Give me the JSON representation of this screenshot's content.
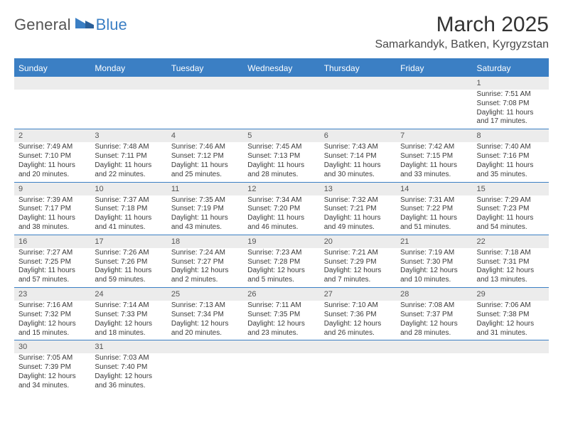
{
  "brand": {
    "general": "General",
    "blue": "Blue"
  },
  "title": "March 2025",
  "location": "Samarkandyk, Batken, Kyrgyzstan",
  "accent_color": "#3b7fc4",
  "header_bg": "#ececec",
  "text_color": "#333333",
  "day_headers": [
    "Sunday",
    "Monday",
    "Tuesday",
    "Wednesday",
    "Thursday",
    "Friday",
    "Saturday"
  ],
  "weeks": [
    [
      null,
      null,
      null,
      null,
      null,
      null,
      {
        "n": "1",
        "sr": "Sunrise: 7:51 AM",
        "ss": "Sunset: 7:08 PM",
        "dl": "Daylight: 11 hours and 17 minutes."
      }
    ],
    [
      {
        "n": "2",
        "sr": "Sunrise: 7:49 AM",
        "ss": "Sunset: 7:10 PM",
        "dl": "Daylight: 11 hours and 20 minutes."
      },
      {
        "n": "3",
        "sr": "Sunrise: 7:48 AM",
        "ss": "Sunset: 7:11 PM",
        "dl": "Daylight: 11 hours and 22 minutes."
      },
      {
        "n": "4",
        "sr": "Sunrise: 7:46 AM",
        "ss": "Sunset: 7:12 PM",
        "dl": "Daylight: 11 hours and 25 minutes."
      },
      {
        "n": "5",
        "sr": "Sunrise: 7:45 AM",
        "ss": "Sunset: 7:13 PM",
        "dl": "Daylight: 11 hours and 28 minutes."
      },
      {
        "n": "6",
        "sr": "Sunrise: 7:43 AM",
        "ss": "Sunset: 7:14 PM",
        "dl": "Daylight: 11 hours and 30 minutes."
      },
      {
        "n": "7",
        "sr": "Sunrise: 7:42 AM",
        "ss": "Sunset: 7:15 PM",
        "dl": "Daylight: 11 hours and 33 minutes."
      },
      {
        "n": "8",
        "sr": "Sunrise: 7:40 AM",
        "ss": "Sunset: 7:16 PM",
        "dl": "Daylight: 11 hours and 35 minutes."
      }
    ],
    [
      {
        "n": "9",
        "sr": "Sunrise: 7:39 AM",
        "ss": "Sunset: 7:17 PM",
        "dl": "Daylight: 11 hours and 38 minutes."
      },
      {
        "n": "10",
        "sr": "Sunrise: 7:37 AM",
        "ss": "Sunset: 7:18 PM",
        "dl": "Daylight: 11 hours and 41 minutes."
      },
      {
        "n": "11",
        "sr": "Sunrise: 7:35 AM",
        "ss": "Sunset: 7:19 PM",
        "dl": "Daylight: 11 hours and 43 minutes."
      },
      {
        "n": "12",
        "sr": "Sunrise: 7:34 AM",
        "ss": "Sunset: 7:20 PM",
        "dl": "Daylight: 11 hours and 46 minutes."
      },
      {
        "n": "13",
        "sr": "Sunrise: 7:32 AM",
        "ss": "Sunset: 7:21 PM",
        "dl": "Daylight: 11 hours and 49 minutes."
      },
      {
        "n": "14",
        "sr": "Sunrise: 7:31 AM",
        "ss": "Sunset: 7:22 PM",
        "dl": "Daylight: 11 hours and 51 minutes."
      },
      {
        "n": "15",
        "sr": "Sunrise: 7:29 AM",
        "ss": "Sunset: 7:23 PM",
        "dl": "Daylight: 11 hours and 54 minutes."
      }
    ],
    [
      {
        "n": "16",
        "sr": "Sunrise: 7:27 AM",
        "ss": "Sunset: 7:25 PM",
        "dl": "Daylight: 11 hours and 57 minutes."
      },
      {
        "n": "17",
        "sr": "Sunrise: 7:26 AM",
        "ss": "Sunset: 7:26 PM",
        "dl": "Daylight: 11 hours and 59 minutes."
      },
      {
        "n": "18",
        "sr": "Sunrise: 7:24 AM",
        "ss": "Sunset: 7:27 PM",
        "dl": "Daylight: 12 hours and 2 minutes."
      },
      {
        "n": "19",
        "sr": "Sunrise: 7:23 AM",
        "ss": "Sunset: 7:28 PM",
        "dl": "Daylight: 12 hours and 5 minutes."
      },
      {
        "n": "20",
        "sr": "Sunrise: 7:21 AM",
        "ss": "Sunset: 7:29 PM",
        "dl": "Daylight: 12 hours and 7 minutes."
      },
      {
        "n": "21",
        "sr": "Sunrise: 7:19 AM",
        "ss": "Sunset: 7:30 PM",
        "dl": "Daylight: 12 hours and 10 minutes."
      },
      {
        "n": "22",
        "sr": "Sunrise: 7:18 AM",
        "ss": "Sunset: 7:31 PM",
        "dl": "Daylight: 12 hours and 13 minutes."
      }
    ],
    [
      {
        "n": "23",
        "sr": "Sunrise: 7:16 AM",
        "ss": "Sunset: 7:32 PM",
        "dl": "Daylight: 12 hours and 15 minutes."
      },
      {
        "n": "24",
        "sr": "Sunrise: 7:14 AM",
        "ss": "Sunset: 7:33 PM",
        "dl": "Daylight: 12 hours and 18 minutes."
      },
      {
        "n": "25",
        "sr": "Sunrise: 7:13 AM",
        "ss": "Sunset: 7:34 PM",
        "dl": "Daylight: 12 hours and 20 minutes."
      },
      {
        "n": "26",
        "sr": "Sunrise: 7:11 AM",
        "ss": "Sunset: 7:35 PM",
        "dl": "Daylight: 12 hours and 23 minutes."
      },
      {
        "n": "27",
        "sr": "Sunrise: 7:10 AM",
        "ss": "Sunset: 7:36 PM",
        "dl": "Daylight: 12 hours and 26 minutes."
      },
      {
        "n": "28",
        "sr": "Sunrise: 7:08 AM",
        "ss": "Sunset: 7:37 PM",
        "dl": "Daylight: 12 hours and 28 minutes."
      },
      {
        "n": "29",
        "sr": "Sunrise: 7:06 AM",
        "ss": "Sunset: 7:38 PM",
        "dl": "Daylight: 12 hours and 31 minutes."
      }
    ],
    [
      {
        "n": "30",
        "sr": "Sunrise: 7:05 AM",
        "ss": "Sunset: 7:39 PM",
        "dl": "Daylight: 12 hours and 34 minutes."
      },
      {
        "n": "31",
        "sr": "Sunrise: 7:03 AM",
        "ss": "Sunset: 7:40 PM",
        "dl": "Daylight: 12 hours and 36 minutes."
      },
      null,
      null,
      null,
      null,
      null
    ]
  ]
}
